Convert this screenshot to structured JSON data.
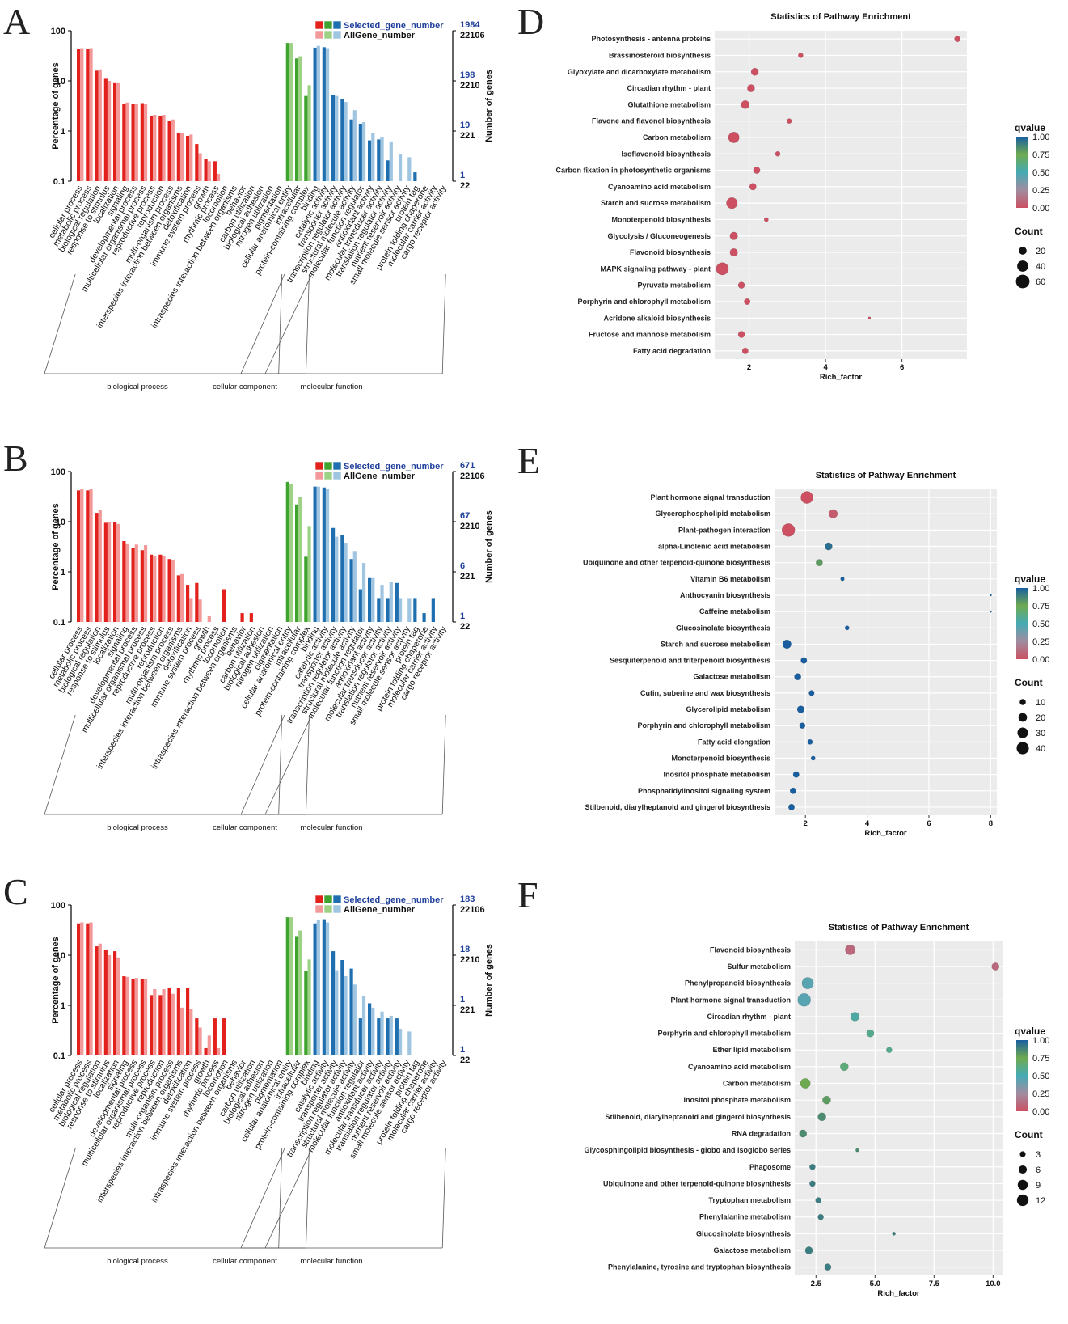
{
  "panel_labels": [
    "A",
    "B",
    "C",
    "D",
    "E",
    "F"
  ],
  "go_common": {
    "categories": [
      "cellular process",
      "metabolic process",
      "biological regulation",
      "response to stimulus",
      "localization",
      "signaling",
      "developmental process",
      "multicellular organismal process",
      "reproductive process",
      "reproduction",
      "multi-organism process",
      "interspecies interaction between organisms",
      "detoxification",
      "immune system process",
      "growth",
      "rhythmic process",
      "locomotion",
      "intraspecies interaction between organisms",
      "behavior",
      "carbon utilization",
      "biological adhesion",
      "nitrogen utilization",
      "pigmentation",
      "cellular anatomical entity",
      "intracellular",
      "protein-containing complex",
      "binding",
      "catalytic activity",
      "transporter activity",
      "transcription regulator activity",
      "structural molecule activity",
      "molecular function regulator",
      "antioxidant activity",
      "molecular transducer activity",
      "translation regulator activity",
      "nutrient reservoir activity",
      "small molecule sensor activity",
      "protein tag",
      "protein folding chaperone",
      "molecular carrier activity",
      "cargo receptor activity"
    ],
    "groups": [
      "biological process",
      "cellular component",
      "molecular function"
    ],
    "group_ranges": [
      [
        0,
        22
      ],
      [
        23,
        25
      ],
      [
        26,
        40
      ]
    ],
    "y_left_label": "Percentage of genes",
    "y_right_label": "Number of genes",
    "y_ticks": [
      "100",
      "10",
      "1",
      "0.1"
    ],
    "legend_selected": "Selected_gene_number",
    "legend_all": "AllGene_number",
    "right_all": [
      "22106",
      "2210",
      "221",
      "22"
    ],
    "colors": {
      "bp_dark": "#e2211c",
      "bp_light": "#f3999a",
      "cc_dark": "#3fa32f",
      "cc_light": "#9dd185",
      "mf_dark": "#1f6fb0",
      "mf_light": "#9fc5e0"
    }
  },
  "chart_data": [
    {
      "panel": "A",
      "type": "bar",
      "scale": "log",
      "right_selected": [
        "1984",
        "198",
        "19",
        "1"
      ],
      "series": [
        {
          "name": "Selected_gene_number",
          "values": [
            43,
            43,
            16,
            11,
            9,
            3.5,
            3.5,
            3.6,
            2.0,
            2.0,
            1.6,
            0.9,
            0.8,
            0.55,
            0.28,
            0.25,
            null,
            null,
            null,
            null,
            null,
            null,
            null,
            57,
            28,
            5.0,
            46,
            47,
            5.2,
            4.4,
            1.7,
            1.4,
            0.65,
            0.68,
            0.26,
            null,
            null,
            0.15,
            null,
            null,
            null
          ]
        },
        {
          "name": "AllGene_number",
          "values": [
            45,
            45,
            17,
            10,
            9,
            3.7,
            3.5,
            3.4,
            2.1,
            2.1,
            1.7,
            0.9,
            0.85,
            0.36,
            0.25,
            0.14,
            null,
            null,
            null,
            null,
            null,
            null,
            null,
            57,
            31,
            8.2,
            50,
            45,
            5.0,
            3.8,
            2.6,
            1.5,
            0.9,
            0.75,
            0.62,
            0.34,
            0.3,
            null,
            null,
            null,
            null
          ]
        }
      ]
    },
    {
      "panel": "B",
      "type": "bar",
      "scale": "log",
      "right_selected": [
        "671",
        "67",
        "6",
        "1"
      ],
      "series": [
        {
          "name": "Selected_gene_number",
          "values": [
            42,
            42,
            15,
            9.5,
            10,
            4.1,
            3.0,
            2.7,
            2.2,
            2.2,
            1.8,
            0.85,
            0.55,
            0.6,
            null,
            null,
            0.45,
            null,
            0.15,
            0.15,
            null,
            null,
            null,
            62,
            22,
            2.0,
            50,
            48,
            7.5,
            5.5,
            1.8,
            0.45,
            0.75,
            0.3,
            0.3,
            0.6,
            null,
            0.3,
            0.15,
            0.3,
            null
          ]
        },
        {
          "name": "AllGene_number",
          "values": [
            45,
            45,
            17,
            10,
            9,
            3.7,
            3.5,
            3.4,
            2.1,
            2.1,
            1.7,
            0.9,
            0.3,
            0.28,
            0.13,
            null,
            null,
            null,
            null,
            null,
            null,
            null,
            null,
            57,
            31,
            8.2,
            50,
            45,
            5.0,
            3.8,
            2.6,
            1.5,
            0.75,
            0.55,
            0.62,
            0.3,
            0.3,
            null,
            null,
            null,
            null
          ]
        }
      ]
    },
    {
      "panel": "C",
      "type": "bar",
      "scale": "log",
      "right_selected": [
        "183",
        "18",
        "1",
        "1"
      ],
      "series": [
        {
          "name": "Selected_gene_number",
          "values": [
            43,
            43,
            15,
            13,
            12,
            3.8,
            3.3,
            3.3,
            1.6,
            1.6,
            2.2,
            2.2,
            2.2,
            0.55,
            0.14,
            0.55,
            0.55,
            null,
            null,
            null,
            null,
            null,
            null,
            57,
            24,
            4.9,
            43,
            52,
            12,
            8.0,
            5.4,
            0.55,
            1.1,
            0.55,
            0.55,
            0.55,
            null,
            null,
            null,
            null,
            null
          ]
        },
        {
          "name": "AllGene_number",
          "values": [
            45,
            45,
            17,
            10,
            9,
            3.7,
            3.5,
            3.4,
            2.1,
            2.1,
            1.7,
            0.9,
            0.85,
            0.36,
            0.25,
            0.14,
            null,
            null,
            null,
            null,
            null,
            null,
            null,
            57,
            31,
            8.2,
            50,
            45,
            5.0,
            3.8,
            2.6,
            1.5,
            0.9,
            0.75,
            0.62,
            0.34,
            0.3,
            null,
            null,
            null,
            null
          ]
        }
      ]
    },
    {
      "panel": "D",
      "type": "scatter",
      "title": "Statistics of Pathway Enrichment",
      "xlabel": "Rich_factor",
      "x_ticks": [
        2,
        4,
        6
      ],
      "xlim": [
        1.1,
        7.7
      ],
      "legend_color_title": "qvalue",
      "qvalue_ticks": [
        "1.00",
        "0.75",
        "0.50",
        "0.25",
        "0.00"
      ],
      "legend_size_title": "Count",
      "count_ticks": [
        20,
        40,
        60
      ],
      "pathways": [
        "Photosynthesis - antenna proteins",
        "Brassinosteroid biosynthesis",
        "Glyoxylate and dicarboxylate metabolism",
        "Circadian rhythm - plant",
        "Glutathione metabolism",
        "Flavone and flavonol biosynthesis",
        "Carbon metabolism",
        "Isoflavonoid biosynthesis",
        "Carbon fixation in photosynthetic organisms",
        "Cyanoamino acid metabolism",
        "Starch and sucrose metabolism",
        "Monoterpenoid biosynthesis",
        "Glycolysis / Gluconeogenesis",
        "Flavonoid biosynthesis",
        "MAPK signaling pathway - plant",
        "Pyruvate metabolism",
        "Porphyrin and chlorophyll metabolism",
        "Acridone alkaloid biosynthesis",
        "Fructose and mannose metabolism",
        "Fatty acid degradation"
      ],
      "rich_factor": [
        7.45,
        3.35,
        2.15,
        2.05,
        1.9,
        3.05,
        1.6,
        2.75,
        2.2,
        2.1,
        1.55,
        2.45,
        1.6,
        1.6,
        1.3,
        1.8,
        1.95,
        5.15,
        1.8,
        1.9
      ],
      "count": [
        11,
        8,
        18,
        18,
        22,
        8,
        38,
        8,
        15,
        15,
        40,
        6,
        20,
        20,
        50,
        14,
        12,
        2,
        14,
        12
      ],
      "qvalue": [
        0,
        0,
        0,
        0,
        0,
        0,
        0,
        0,
        0,
        0,
        0,
        0,
        0,
        0,
        0,
        0,
        0,
        0,
        0,
        0
      ]
    },
    {
      "panel": "E",
      "type": "scatter",
      "title": "Statistics of Pathway Enrichment",
      "xlabel": "Rich_factor",
      "x_ticks": [
        2,
        4,
        6,
        8
      ],
      "xlim": [
        1.0,
        8.2
      ],
      "legend_color_title": "qvalue",
      "qvalue_ticks": [
        "1.00",
        "0.75",
        "0.50",
        "0.25",
        "0.00"
      ],
      "legend_size_title": "Count",
      "count_ticks": [
        10,
        20,
        30,
        40
      ],
      "pathways": [
        "Plant hormone signal transduction",
        "Glycerophospholipid metabolism",
        "Plant-pathogen interaction",
        "alpha-Linolenic acid metabolism",
        "Ubiquinone and other terpenoid-quinone biosynthesis",
        "Vitamin B6 metabolism",
        "Anthocyanin biosynthesis",
        "Caffeine metabolism",
        "Glucosinolate biosynthesis",
        "Starch and sucrose metabolism",
        "Sesquiterpenoid and triterpenoid biosynthesis",
        "Galactose metabolism",
        "Cutin, suberine and wax biosynthesis",
        "Glycerolipid metabolism",
        "Porphyrin and chlorophyll metabolism",
        "Fatty acid elongation",
        "Monoterpenoid biosynthesis",
        "Inositol phosphate metabolism",
        "Phosphatidylinositol signaling system",
        "Stilbenoid, diarylheptanoid and gingerol biosynthesis"
      ],
      "rich_factor": [
        2.05,
        2.9,
        1.45,
        2.75,
        2.45,
        3.2,
        8.0,
        8.0,
        3.35,
        1.4,
        1.95,
        1.75,
        2.2,
        1.85,
        1.9,
        2.15,
        2.25,
        1.7,
        1.6,
        1.55
      ],
      "count": [
        40,
        20,
        45,
        15,
        12,
        4,
        1,
        1,
        5,
        20,
        10,
        12,
        8,
        14,
        9,
        7,
        5,
        10,
        10,
        10
      ],
      "qvalue": [
        0.0,
        0.05,
        0.0,
        0.95,
        0.8,
        1.0,
        1.0,
        1.0,
        1.0,
        1.0,
        1.0,
        1.0,
        1.0,
        1.0,
        1.0,
        1.0,
        1.0,
        1.0,
        1.0,
        1.0
      ]
    },
    {
      "panel": "F",
      "type": "scatter",
      "title": "Statistics of Pathway Enrichment",
      "xlabel": "Rich_factor",
      "x_ticks": [
        2.5,
        5.0,
        7.5,
        10.0
      ],
      "xlim": [
        1.6,
        10.4
      ],
      "legend_color_title": "qvalue",
      "qvalue_ticks": [
        "1.00",
        "0.75",
        "0.50",
        "0.25",
        "0.00"
      ],
      "legend_size_title": "Count",
      "count_ticks": [
        3,
        6,
        9,
        12
      ],
      "pathways": [
        "Flavonoid biosynthesis",
        "Sulfur metabolism",
        "Phenylpropanoid biosynthesis",
        "Plant hormone signal transduction",
        "Circadian rhythm - plant",
        "Porphyrin and chlorophyll metabolism",
        "Ether lipid metabolism",
        "Cyanoamino acid metabolism",
        "Carbon metabolism",
        "Inositol phosphate metabolism",
        "Stilbenoid, diarylheptanoid and gingerol biosynthesis",
        "RNA degradation",
        "Glycosphingolipid biosynthesis - globo and isoglobo series",
        "Phagosome",
        "Ubiquinone and other terpenoid-quinone biosynthesis",
        "Tryptophan metabolism",
        "Phenylalanine metabolism",
        "Glucosinolate biosynthesis",
        "Galactose metabolism",
        "Phenylalanine, tyrosine and tryptophan biosynthesis"
      ],
      "rich_factor": [
        3.95,
        10.1,
        2.15,
        2.0,
        4.15,
        4.8,
        5.6,
        3.7,
        2.05,
        2.95,
        2.75,
        1.95,
        4.25,
        2.35,
        2.35,
        2.6,
        2.7,
        5.8,
        2.2,
        3.0
      ],
      "count": [
        9,
        5,
        12,
        15,
        7,
        5,
        3,
        6,
        9,
        6,
        6,
        5,
        1,
        3,
        3,
        3,
        3,
        1,
        5,
        4
      ],
      "qvalue": [
        0.1,
        0.1,
        0.45,
        0.45,
        0.55,
        0.6,
        0.6,
        0.65,
        0.75,
        0.8,
        0.85,
        0.85,
        0.85,
        0.9,
        0.9,
        0.9,
        0.9,
        0.9,
        0.9,
        0.9
      ]
    }
  ]
}
